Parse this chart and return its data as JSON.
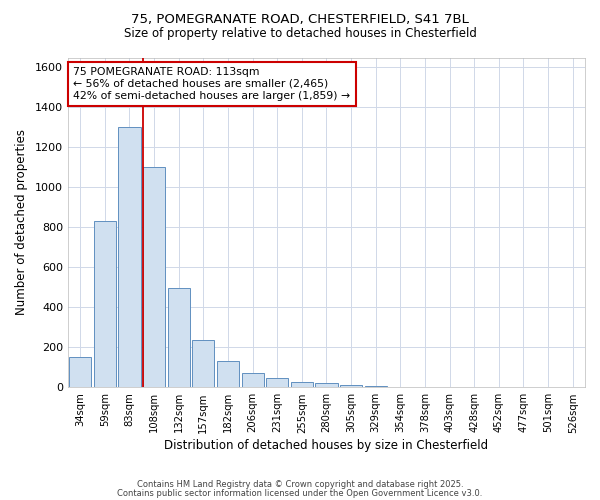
{
  "title_line1": "75, POMEGRANATE ROAD, CHESTERFIELD, S41 7BL",
  "title_line2": "Size of property relative to detached houses in Chesterfield",
  "xlabel": "Distribution of detached houses by size in Chesterfield",
  "ylabel": "Number of detached properties",
  "bar_color": "#d0e0f0",
  "bar_edge_color": "#6090c0",
  "background_color": "#ffffff",
  "grid_color": "#d0d8e8",
  "annotation_box_color": "#cc0000",
  "vline_color": "#cc0000",
  "annotation_text": "75 POMEGRANATE ROAD: 113sqm\n← 56% of detached houses are smaller (2,465)\n42% of semi-detached houses are larger (1,859) →",
  "categories": [
    "34sqm",
    "59sqm",
    "83sqm",
    "108sqm",
    "132sqm",
    "157sqm",
    "182sqm",
    "206sqm",
    "231sqm",
    "255sqm",
    "280sqm",
    "305sqm",
    "329sqm",
    "354sqm",
    "378sqm",
    "403sqm",
    "428sqm",
    "452sqm",
    "477sqm",
    "501sqm",
    "526sqm"
  ],
  "values": [
    150,
    830,
    1300,
    1100,
    495,
    235,
    130,
    70,
    45,
    25,
    20,
    10,
    5,
    2,
    1,
    1,
    1,
    1,
    1,
    1,
    1
  ],
  "vline_x": 3.0,
  "ylim": [
    0,
    1650
  ],
  "yticks": [
    0,
    200,
    400,
    600,
    800,
    1000,
    1200,
    1400,
    1600
  ],
  "footnote1": "Contains HM Land Registry data © Crown copyright and database right 2025.",
  "footnote2": "Contains public sector information licensed under the Open Government Licence v3.0."
}
